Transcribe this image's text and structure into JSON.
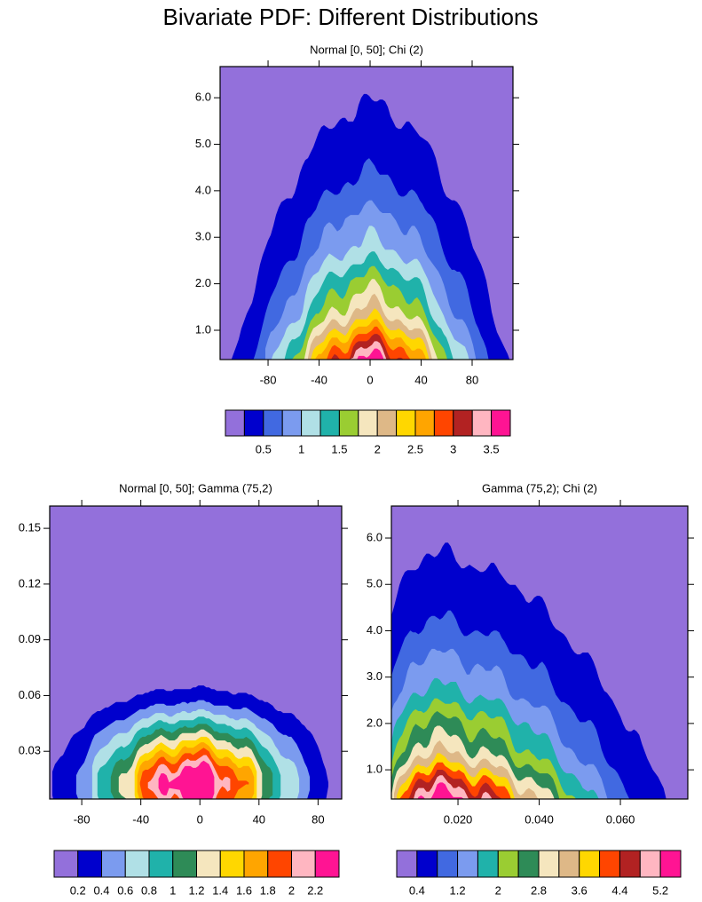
{
  "title": "Bivariate PDF: Different Distributions",
  "chart_data": [
    {
      "type": "contour",
      "title": "Normal [0, 50]; Chi (2)",
      "xlim": [
        -117.6,
        112
      ],
      "xticks": [
        -80,
        -40,
        0,
        40,
        80
      ],
      "ylim": [
        0.37,
        6.67
      ],
      "yticks": [
        {
          "value": 1,
          "label": "1.0"
        },
        {
          "value": 2,
          "label": "2.0"
        },
        {
          "value": 3,
          "label": "3.0"
        },
        {
          "value": 4,
          "label": "4.0"
        },
        {
          "value": 5,
          "label": "5.0"
        },
        {
          "value": 6,
          "label": "6.0"
        }
      ],
      "levels": [
        0.25,
        0.5,
        0.75,
        1,
        1.25,
        1.5,
        1.75,
        2,
        2.25,
        2.5,
        2.75,
        3,
        3.25,
        3.5
      ],
      "colorbar_ticks": [
        0.5,
        1,
        1.5,
        2,
        2.5,
        3,
        3.5
      ],
      "colors": [
        "#9370db",
        "#0000cd",
        "#4169e1",
        "#7b9bef",
        "#b0e0e6",
        "#20b2aa",
        "#9acd32",
        "#f5e6be",
        "#deb887",
        "#ffd700",
        "#ffa500",
        "#ff4500",
        "#b22222",
        "#ffb6c1",
        "#ff1493"
      ]
    },
    {
      "type": "contour",
      "title": "Normal [0, 50]; Gamma (75,2)",
      "xlim": [
        -101.7,
        96
      ],
      "xticks": [
        -80,
        -40,
        0,
        40,
        80
      ],
      "ylim": [
        0.0043,
        0.162
      ],
      "yticks": [
        0.03,
        0.06,
        0.09,
        0.12,
        0.15
      ],
      "levels": [
        0.2,
        0.4,
        0.6,
        0.8,
        1,
        1.2,
        1.4,
        1.6,
        1.8,
        2,
        2.2
      ],
      "colorbar_ticks": [
        0.2,
        0.4,
        0.6,
        0.8,
        1,
        1.2,
        1.4,
        1.6,
        1.8,
        2,
        2.2
      ],
      "colors": [
        "#9370db",
        "#0000cd",
        "#7b9bef",
        "#b0e0e6",
        "#20b2aa",
        "#2e8b57",
        "#f5e6be",
        "#ffd700",
        "#ffa500",
        "#ff4500",
        "#ffb6c1",
        "#ff1493"
      ]
    },
    {
      "type": "contour",
      "title": "Gamma (75,2); Chi (2)",
      "xlim": [
        0.0036,
        0.0766
      ],
      "xticks": [
        {
          "value": 0.02,
          "label": "0.020"
        },
        {
          "value": 0.04,
          "label": "0.040"
        },
        {
          "value": 0.06,
          "label": "0.060"
        }
      ],
      "ylim": [
        0.37,
        6.69
      ],
      "yticks": [
        {
          "value": 1,
          "label": "1.0"
        },
        {
          "value": 2,
          "label": "2.0"
        },
        {
          "value": 3,
          "label": "3.0"
        },
        {
          "value": 4,
          "label": "4.0"
        },
        {
          "value": 5,
          "label": "5.0"
        },
        {
          "value": 6,
          "label": "6.0"
        }
      ],
      "levels": [
        0.4,
        0.8,
        1.2,
        1.6,
        2,
        2.4,
        2.8,
        3.2,
        3.6,
        4,
        4.4,
        4.8,
        5.2
      ],
      "colorbar_ticks": [
        0.4,
        1.2,
        2,
        2.8,
        3.6,
        4.4,
        5.2
      ],
      "colors": [
        "#9370db",
        "#0000cd",
        "#4169e1",
        "#7b9bef",
        "#20b2aa",
        "#9acd32",
        "#2e8b57",
        "#f5e6be",
        "#deb887",
        "#ffd700",
        "#ff4500",
        "#b22222",
        "#ffb6c1",
        "#ff1493"
      ]
    }
  ]
}
